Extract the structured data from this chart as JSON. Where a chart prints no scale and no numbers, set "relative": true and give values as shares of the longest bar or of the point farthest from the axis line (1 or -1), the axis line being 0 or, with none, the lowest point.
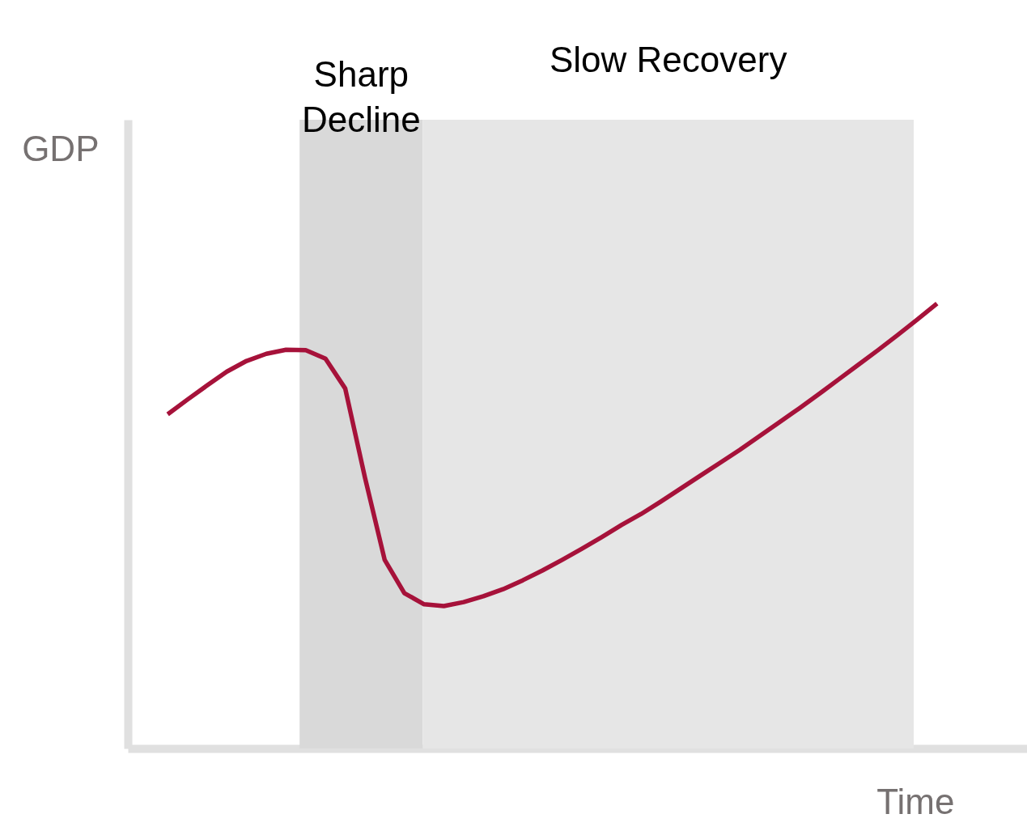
{
  "chart_data": {
    "type": "line",
    "relative": true,
    "xlabel": "Time",
    "ylabel": "GDP",
    "categories": [
      null,
      null,
      null,
      null,
      null,
      null,
      null,
      null,
      null,
      null,
      null,
      null,
      null,
      null,
      null,
      null,
      null,
      null,
      null,
      null,
      null,
      null,
      null,
      null,
      null,
      null,
      null,
      null,
      null,
      null,
      null,
      null,
      null,
      null,
      null,
      null,
      null,
      null,
      null,
      null
    ],
    "series": [
      {
        "color": "#a6123a",
        "values": [
          0.751,
          0.784,
          0.816,
          0.847,
          0.871,
          0.887,
          0.896,
          0.895,
          0.876,
          0.809,
          0.609,
          0.424,
          0.349,
          0.324,
          0.32,
          0.329,
          0.342,
          0.358,
          0.378,
          0.4,
          0.424,
          0.449,
          0.475,
          0.502,
          0.527,
          0.555,
          0.584,
          0.613,
          0.642,
          0.671,
          0.702,
          0.733,
          0.764,
          0.796,
          0.829,
          0.862,
          0.895,
          0.929,
          0.964,
          1.0
        ]
      }
    ],
    "annotations": [
      "Sharp Decline",
      "Slow Recovery"
    ]
  }
}
